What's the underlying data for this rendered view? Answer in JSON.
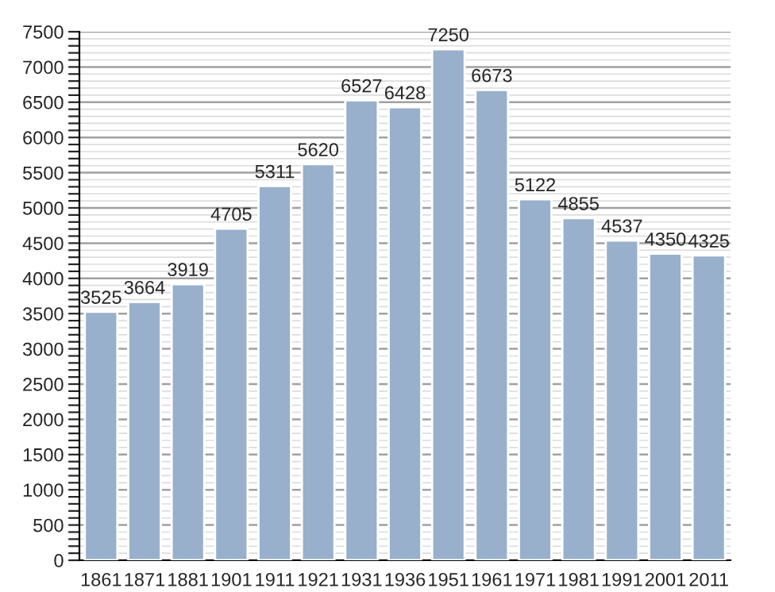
{
  "chart_data": {
    "type": "bar",
    "categories": [
      "1861",
      "1871",
      "1881",
      "1901",
      "1911",
      "1921",
      "1931",
      "1936",
      "1951",
      "1961",
      "1971",
      "1981",
      "1991",
      "2001",
      "2011"
    ],
    "values": [
      3525,
      3664,
      3919,
      4705,
      5311,
      5620,
      6527,
      6428,
      7250,
      6673,
      5122,
      4855,
      4537,
      4350,
      4325
    ],
    "color": "#98b0cc",
    "data_labels": true,
    "grid": "y",
    "ylim": [
      0,
      7500
    ],
    "yticks": [
      0,
      {
        "value": 100,
        "label": null
      },
      {
        "value": 200,
        "label": null
      },
      {
        "value": 300,
        "label": null
      },
      {
        "value": 400,
        "label": null
      },
      500,
      {
        "value": 600,
        "label": null
      },
      {
        "value": 700,
        "label": null
      },
      {
        "value": 800,
        "label": null
      },
      {
        "value": 900,
        "label": null
      },
      1000,
      {
        "value": 1100,
        "label": null
      },
      {
        "value": 1200,
        "label": null
      },
      {
        "value": 1300,
        "label": null
      },
      {
        "value": 1400,
        "label": null
      },
      1500,
      {
        "value": 1600,
        "label": null
      },
      {
        "value": 1700,
        "label": null
      },
      {
        "value": 1800,
        "label": null
      },
      {
        "value": 1900,
        "label": null
      },
      2000,
      {
        "value": 2100,
        "label": null
      },
      {
        "value": 2200,
        "label": null
      },
      {
        "value": 2300,
        "label": null
      },
      {
        "value": 2400,
        "label": null
      },
      2500,
      {
        "value": 2600,
        "label": null
      },
      {
        "value": 2700,
        "label": null
      },
      {
        "value": 2800,
        "label": null
      },
      {
        "value": 2900,
        "label": null
      },
      3000,
      {
        "value": 3100,
        "label": null
      },
      {
        "value": 3200,
        "label": null
      },
      {
        "value": 3300,
        "label": null
      },
      {
        "value": 3400,
        "label": null
      },
      3500,
      {
        "value": 3600,
        "label": null
      },
      {
        "value": 3700,
        "label": null
      },
      {
        "value": 3800,
        "label": null
      },
      {
        "value": 3900,
        "label": null
      },
      4000,
      {
        "value": 4100,
        "label": null
      },
      {
        "value": 4200,
        "label": null
      },
      {
        "value": 4300,
        "label": null
      },
      {
        "value": 4400,
        "label": null
      },
      4500,
      {
        "value": 4600,
        "label": null
      },
      {
        "value": 4700,
        "label": null
      },
      {
        "value": 4800,
        "label": null
      },
      {
        "value": 4900,
        "label": null
      },
      5000,
      {
        "value": 5100,
        "label": null
      },
      {
        "value": 5200,
        "label": null
      },
      {
        "value": 5300,
        "label": null
      },
      {
        "value": 5400,
        "label": null
      },
      5500,
      {
        "value": 5600,
        "label": null
      },
      {
        "value": 5700,
        "label": null
      },
      {
        "value": 5800,
        "label": null
      },
      {
        "value": 5900,
        "label": null
      },
      6000,
      {
        "value": 6100,
        "label": null
      },
      {
        "value": 6200,
        "label": null
      },
      {
        "value": 6300,
        "label": null
      },
      {
        "value": 6400,
        "label": null
      },
      6500,
      {
        "value": 6600,
        "label": null
      },
      {
        "value": 6700,
        "label": null
      },
      {
        "value": 6800,
        "label": null
      },
      {
        "value": 6900,
        "label": null
      },
      7000,
      {
        "value": 7100,
        "label": null
      },
      {
        "value": 7200,
        "label": null
      },
      {
        "value": 7300,
        "label": null
      },
      {
        "value": 7400,
        "label": null
      },
      7500
    ]
  }
}
